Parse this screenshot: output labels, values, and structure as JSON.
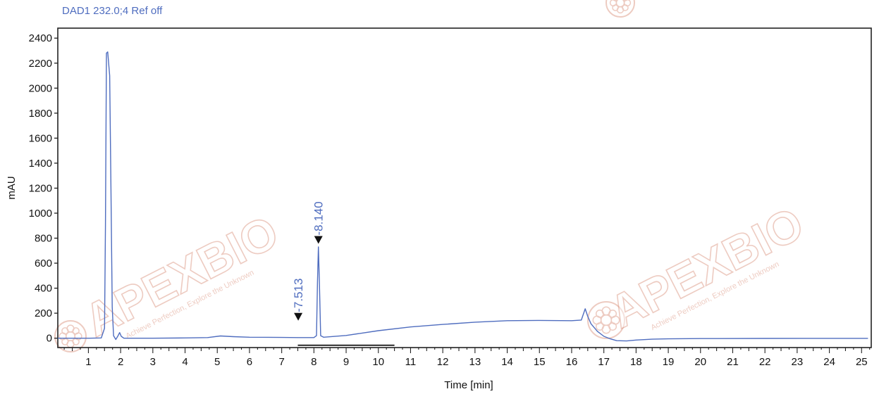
{
  "chart_data": {
    "type": "line",
    "title": "DAD1 232.0;4 Ref off",
    "xlabel": "Time [min]",
    "ylabel": "mAU",
    "xlim": [
      0.05,
      25.3
    ],
    "ylim": [
      -75,
      2480
    ],
    "x_ticks": [
      1,
      2,
      3,
      4,
      5,
      6,
      7,
      8,
      9,
      10,
      11,
      12,
      13,
      14,
      15,
      16,
      17,
      18,
      19,
      20,
      21,
      22,
      23,
      24,
      25
    ],
    "y_ticks": [
      0,
      200,
      400,
      600,
      800,
      1000,
      1200,
      1400,
      1600,
      1800,
      2000,
      2200,
      2400
    ],
    "grid": false,
    "series": [
      {
        "values": [
          [
            0.05,
            0
          ],
          [
            1.0,
            0
          ],
          [
            1.4,
            2
          ],
          [
            1.5,
            80
          ],
          [
            1.53,
            900
          ],
          [
            1.56,
            2280
          ],
          [
            1.6,
            2290
          ],
          [
            1.66,
            2100
          ],
          [
            1.7,
            1200
          ],
          [
            1.74,
            250
          ],
          [
            1.78,
            20
          ],
          [
            1.85,
            -10
          ],
          [
            1.92,
            20
          ],
          [
            1.97,
            45
          ],
          [
            2.02,
            15
          ],
          [
            2.1,
            0
          ],
          [
            3.0,
            0
          ],
          [
            4.0,
            2
          ],
          [
            4.7,
            5
          ],
          [
            5.1,
            18
          ],
          [
            5.5,
            12
          ],
          [
            6.0,
            8
          ],
          [
            7.0,
            6
          ],
          [
            7.5,
            5
          ],
          [
            8.0,
            5
          ],
          [
            8.08,
            20
          ],
          [
            8.11,
            450
          ],
          [
            8.14,
            730
          ],
          [
            8.17,
            450
          ],
          [
            8.21,
            20
          ],
          [
            8.3,
            8
          ],
          [
            9.0,
            22
          ],
          [
            10.0,
            60
          ],
          [
            11.0,
            90
          ],
          [
            12.0,
            110
          ],
          [
            13.0,
            128
          ],
          [
            14.0,
            140
          ],
          [
            15.0,
            142
          ],
          [
            16.0,
            140
          ],
          [
            16.3,
            145
          ],
          [
            16.42,
            235
          ],
          [
            16.5,
            175
          ],
          [
            16.6,
            115
          ],
          [
            16.8,
            55
          ],
          [
            17.0,
            15
          ],
          [
            17.2,
            -5
          ],
          [
            17.4,
            -20
          ],
          [
            17.7,
            -22
          ],
          [
            18.0,
            -15
          ],
          [
            18.5,
            -8
          ],
          [
            19.0,
            -5
          ],
          [
            20.0,
            -3
          ],
          [
            22.0,
            -2
          ],
          [
            24.0,
            -1
          ],
          [
            25.2,
            -1
          ]
        ],
        "color": "#4f6dbf"
      }
    ],
    "peaks": [
      {
        "time": 7.513,
        "label": "7.513",
        "marker_y": 140
      },
      {
        "time": 8.14,
        "label": "8.140",
        "marker_y": 755
      }
    ],
    "baseline_segment": [
      7.5,
      10.5
    ],
    "watermark": {
      "brand": "APEXBIO",
      "tagline": "Achieve Perfection, Explore the Unknown"
    },
    "colors": {
      "trace": "#4f6dbf",
      "annotation": "#4f6dbf",
      "title": "#4f6dbf",
      "frame": "#222222",
      "watermark": "#d98d77"
    }
  }
}
